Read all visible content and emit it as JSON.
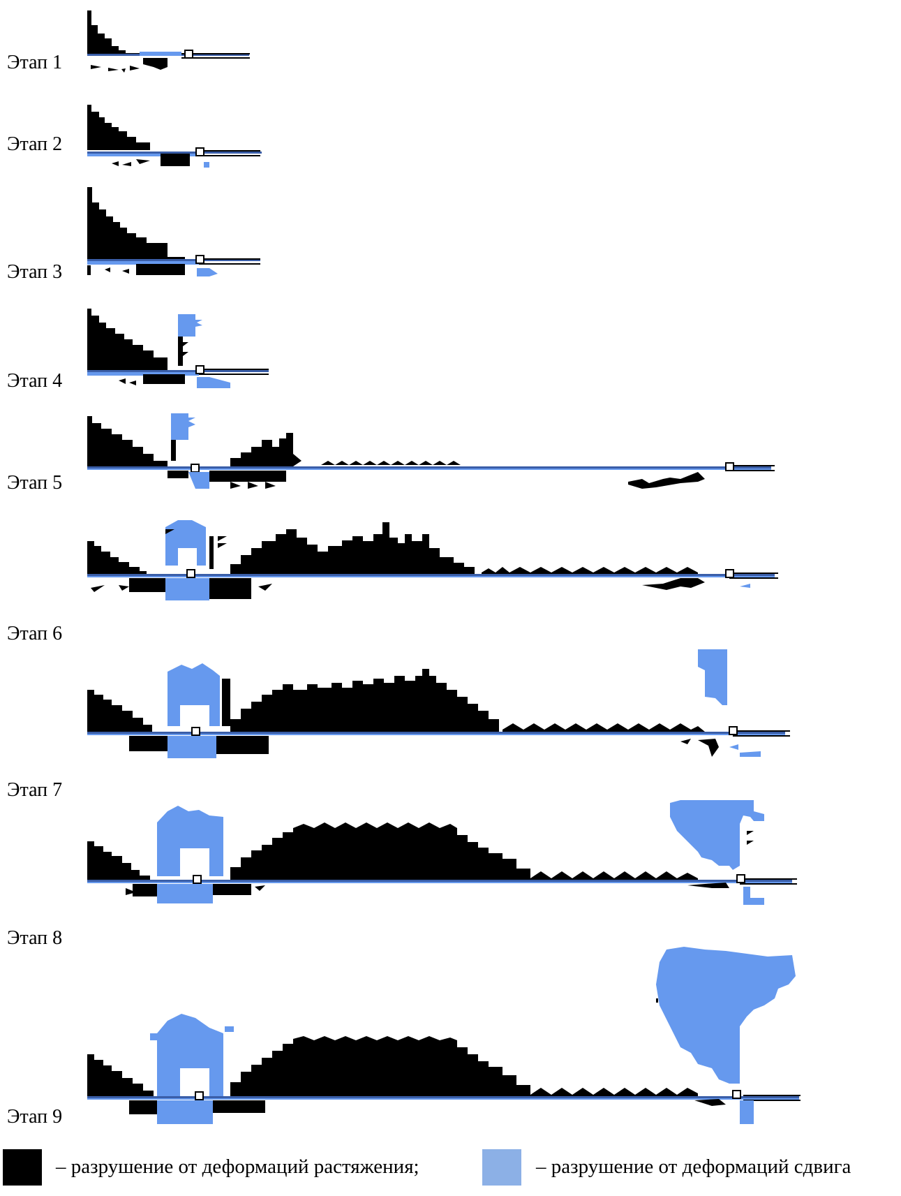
{
  "colors": {
    "tension": "#000000",
    "shear": "#6699ee",
    "beam_line": "#3a5ea8",
    "legend_shear": "#8cb0e6"
  },
  "stages": [
    {
      "label": "Этап 1"
    },
    {
      "label": "Этап 2"
    },
    {
      "label": "Этап 3"
    },
    {
      "label": "Этап 4"
    },
    {
      "label": "Этап 5"
    },
    {
      "label": "Этап 6"
    },
    {
      "label": "Этап 7"
    },
    {
      "label": "Этап 8"
    },
    {
      "label": "Этап 9"
    }
  ],
  "legend": {
    "tension": "– разрушение от деформаций растяжения;",
    "shear": "– разрушение от деформаций сдвига"
  }
}
